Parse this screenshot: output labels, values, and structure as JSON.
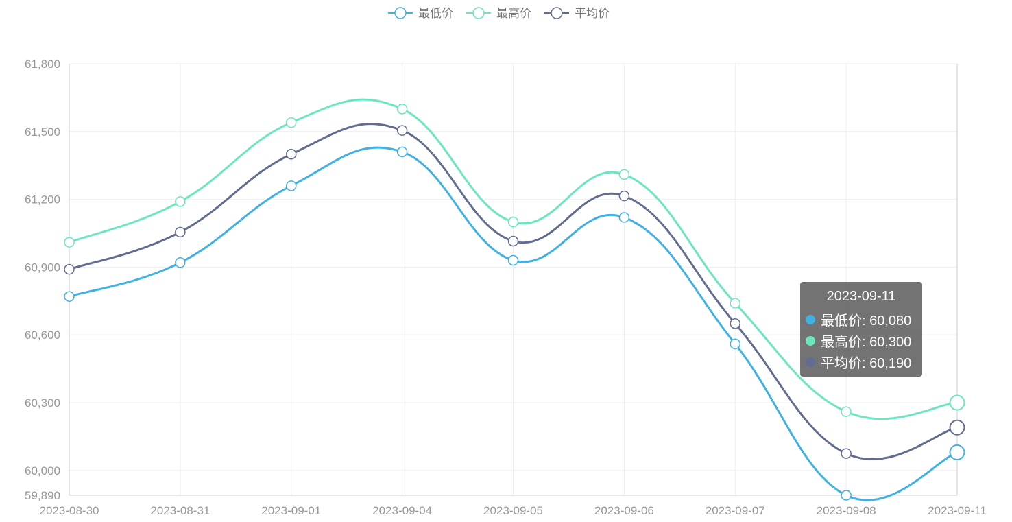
{
  "chart_data": {
    "type": "line",
    "categories": [
      "2023-08-30",
      "2023-08-31",
      "2023-09-01",
      "2023-09-04",
      "2023-09-05",
      "2023-09-06",
      "2023-09-07",
      "2023-09-08",
      "2023-09-11"
    ],
    "series": [
      {
        "name": "最低价",
        "color": "#3fb1e3",
        "values": [
          60770,
          60920,
          61260,
          61410,
          60930,
          61120,
          60560,
          59890,
          60080
        ]
      },
      {
        "name": "最高价",
        "color": "#6be6c1",
        "values": [
          61010,
          61190,
          61540,
          61600,
          61100,
          61310,
          60740,
          60260,
          60300
        ]
      },
      {
        "name": "平均价",
        "color": "#626c91",
        "values": [
          60890,
          61055,
          61400,
          61505,
          61015,
          61215,
          60650,
          60075,
          60190
        ]
      }
    ],
    "yticks": [
      "61,800",
      "61,500",
      "61,200",
      "60,900",
      "60,600",
      "60,300",
      "60,000",
      "59,890"
    ],
    "ylim": [
      59890,
      61800
    ],
    "grid": true,
    "legend_position": "top-center",
    "tooltip": {
      "title": "2023-09-11",
      "rows": [
        {
          "label": "最低价: 60,080",
          "color": "#3fb1e3"
        },
        {
          "label": "最高价: 60,300",
          "color": "#6be6c1"
        },
        {
          "label": "平均价: 60,190",
          "color": "#626c91"
        }
      ]
    }
  }
}
